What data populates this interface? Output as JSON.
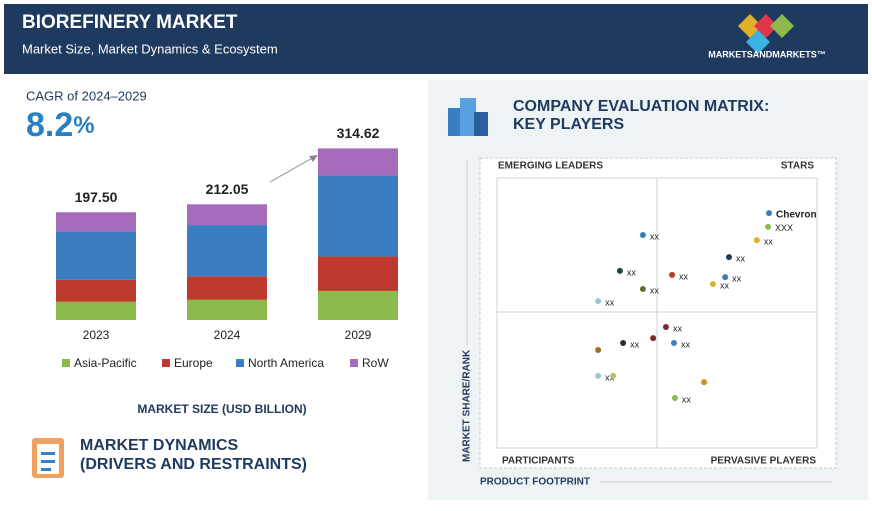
{
  "header": {
    "title": "BIOREFINERY MARKET",
    "subtitle": "Market Size, Market Dynamics & Ecosystem",
    "logo": "MARKETSANDMARKETS™"
  },
  "cagr": {
    "label": "CAGR of 2024–2029",
    "value": "8.2",
    "unit": "%"
  },
  "chart_data": [
    {
      "type": "bar",
      "stacked": true,
      "categories": [
        "2023",
        "2024",
        "2029"
      ],
      "xlabel": "MARKET SIZE (USD BILLION)",
      "ylim": [
        0,
        330
      ],
      "totals": [
        197.5,
        212.05,
        314.62
      ],
      "total_labels": [
        "197.50",
        "212.05",
        "314.62"
      ],
      "series": [
        {
          "name": "Asia-Pacific",
          "color": "#8cba4c",
          "values": [
            33.5,
            37.05,
            53.32
          ]
        },
        {
          "name": "Europe",
          "color": "#be3a2e",
          "values": [
            40,
            43,
            63
          ]
        },
        {
          "name": "North America",
          "color": "#3b7dc1",
          "values": [
            89,
            94,
            148.7
          ]
        },
        {
          "name": "RoW",
          "color": "#a66bbb",
          "values": [
            35,
            38,
            49.6
          ]
        }
      ]
    },
    {
      "type": "scatter",
      "title_lines": [
        "COMPANY EVALUATION MATRIX:",
        "KEY PLAYERS"
      ],
      "xlabel": "PRODUCT FOOTPRINT",
      "ylabel": "MARKET SHARE/RANK",
      "quadrants": [
        "EMERGING LEADERS",
        "STARS",
        "PARTICIPANTS",
        "PERVASIVE PLAYERS"
      ],
      "xlim": [
        0,
        100
      ],
      "ylim": [
        0,
        100
      ],
      "x": [
        85,
        84.7,
        81.2,
        72.5,
        45.6,
        38.4,
        71.3,
        67.5,
        54.7,
        45.6,
        31.6,
        52.8,
        55.3,
        48.8,
        39.4,
        31.6,
        31.6,
        36.3,
        64.7,
        55.6
      ],
      "values": [
        87,
        81.9,
        77,
        70.7,
        78.9,
        65.6,
        63.3,
        60.7,
        64.1,
        58.9,
        54.4,
        44.8,
        38.9,
        40.7,
        38.9,
        36.3,
        26.7,
        26.7,
        24.4,
        18.5
      ],
      "labels": [
        "Chevron",
        "XXX",
        "xx",
        "xx",
        "xx",
        "xx",
        "xx",
        "xx",
        "xx",
        "xx",
        "xx",
        "xx",
        "xx",
        null,
        "xx",
        null,
        "xx",
        null,
        null,
        "xx"
      ],
      "colors": [
        "#3b7dc1",
        "#8cba4c",
        "#e0b02a",
        "#1f3a5f",
        "#3b7dc1",
        "#1f4a3a",
        "#3b7dc1",
        "#e0b02a",
        "#be3a2e",
        "#6b6b2a",
        "#9fc6d0",
        "#7a2a2a",
        "#3b7dc1",
        "#7a2a2a",
        "#2a2a3a",
        "#a07020",
        "#9fc6d0",
        "#a8c870",
        "#d09020",
        "#8cba4c"
      ]
    }
  ],
  "dynamics": {
    "title_lines": [
      "MARKET DYNAMICS",
      "(DRIVERS AND RESTRAINTS)"
    ]
  }
}
